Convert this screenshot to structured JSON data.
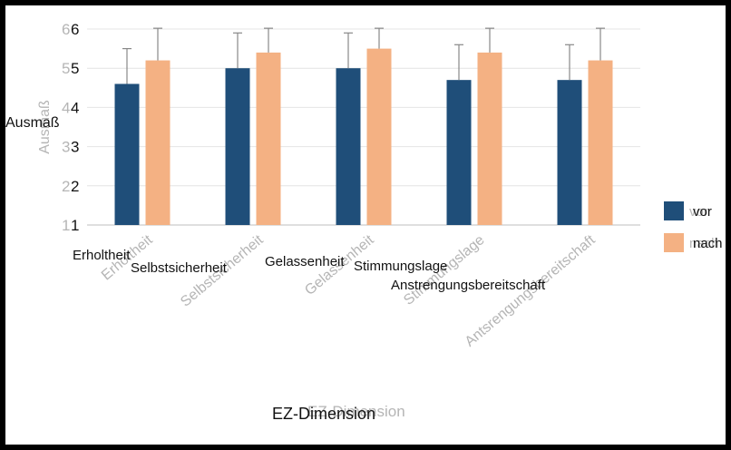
{
  "chart_data": {
    "type": "bar",
    "title": "",
    "xlabel": "EZ-Dimension",
    "ylabel": "Ausmaß",
    "ylim": [
      1,
      6
    ],
    "yticks": [
      1,
      2,
      3,
      4,
      5,
      6
    ],
    "categories": [
      "Erholtheit",
      "Selbstsicherheit",
      "Gelassenheit",
      "Stimmungslage",
      "Anstrengungsbereitschaft"
    ],
    "categories_ghost": [
      "Erholtheit",
      "Selbstsicherheit",
      "Gelassenheit",
      "Stimmungslage",
      "Antsrengungsbereitschaft"
    ],
    "series": [
      {
        "name": "vor",
        "color": "#1f4e79",
        "values": [
          4.6,
          5.0,
          5.0,
          4.7,
          4.7
        ],
        "errors": [
          0.9,
          0.9,
          0.9,
          0.9,
          0.9
        ]
      },
      {
        "name": "nach",
        "color": "#f4b183",
        "values": [
          5.2,
          5.4,
          5.5,
          5.4,
          5.2
        ],
        "errors": [
          1.0,
          1.0,
          1.0,
          1.0,
          1.0
        ]
      }
    ],
    "grid": true,
    "legend": "right",
    "legend_labels_ghost": [
      "vor",
      "nach"
    ]
  }
}
